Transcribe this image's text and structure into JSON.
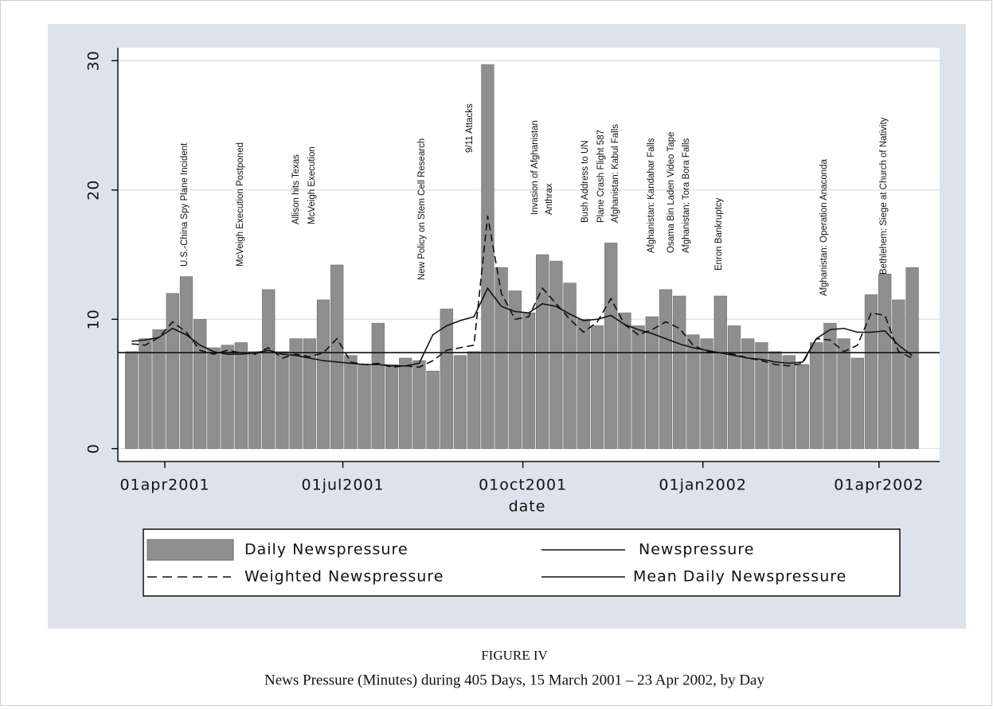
{
  "chart_data": {
    "type": "bar",
    "x_label": "date",
    "figure_label": "FIGURE IV",
    "caption": "News Pressure (Minutes) during 405 Days, 15 March 2001 – 23 Apr 2002, by Day",
    "x": [
      "2001-03-15",
      "2001-03-22",
      "2001-03-29",
      "2001-04-05",
      "2001-04-12",
      "2001-04-19",
      "2001-04-26",
      "2001-05-03",
      "2001-05-10",
      "2001-05-17",
      "2001-05-24",
      "2001-05-31",
      "2001-06-07",
      "2001-06-14",
      "2001-06-21",
      "2001-06-28",
      "2001-07-05",
      "2001-07-12",
      "2001-07-19",
      "2001-07-26",
      "2001-08-02",
      "2001-08-09",
      "2001-08-16",
      "2001-08-23",
      "2001-08-30",
      "2001-09-06",
      "2001-09-13",
      "2001-09-20",
      "2001-09-27",
      "2001-10-04",
      "2001-10-11",
      "2001-10-18",
      "2001-10-25",
      "2001-11-01",
      "2001-11-08",
      "2001-11-15",
      "2001-11-22",
      "2001-11-29",
      "2001-12-06",
      "2001-12-13",
      "2001-12-20",
      "2001-12-27",
      "2002-01-03",
      "2002-01-10",
      "2002-01-17",
      "2002-01-24",
      "2002-01-31",
      "2002-02-07",
      "2002-02-14",
      "2002-02-21",
      "2002-02-28",
      "2002-03-07",
      "2002-03-14",
      "2002-03-21",
      "2002-03-28",
      "2002-04-04",
      "2002-04-11",
      "2002-04-18"
    ],
    "series": [
      {
        "name": "Daily Newspressure",
        "kind": "bar",
        "color": "#8e8e8e",
        "values": [
          7.5,
          8.5,
          9.2,
          12,
          13.3,
          10,
          7.8,
          8,
          8.2,
          7.5,
          12.3,
          7.5,
          8.5,
          8.5,
          11.5,
          14.2,
          7.2,
          6.5,
          9.7,
          6.5,
          7,
          6.8,
          6,
          10.8,
          7.2,
          7.5,
          29.7,
          14,
          12.2,
          10.5,
          15,
          14.5,
          12.8,
          10,
          9.5,
          15.9,
          10.5,
          9.5,
          10.2,
          12.3,
          11.8,
          8.8,
          8.5,
          11.8,
          9.5,
          8.5,
          8.2,
          7.5,
          7.2,
          6.5,
          8.2,
          9.7,
          8.5,
          7,
          11.9,
          13.5,
          11.5,
          14
        ]
      },
      {
        "name": "Newspressure",
        "kind": "line",
        "dash": false,
        "color": "#111111",
        "values": [
          8.3,
          8.4,
          8.6,
          9.3,
          8.8,
          8.0,
          7.5,
          7.3,
          7.3,
          7.4,
          7.6,
          7.3,
          7.2,
          7.0,
          6.8,
          6.7,
          6.6,
          6.5,
          6.5,
          6.4,
          6.4,
          6.6,
          8.8,
          9.5,
          9.9,
          10.2,
          12.4,
          11.0,
          10.6,
          10.5,
          11.2,
          11.0,
          10.4,
          9.9,
          10.0,
          10.3,
          9.6,
          9.2,
          8.9,
          8.5,
          8.1,
          7.8,
          7.6,
          7.4,
          7.2,
          7.0,
          6.9,
          6.7,
          6.6,
          6.7,
          8.5,
          9.2,
          9.3,
          9.0,
          9.0,
          9.1,
          8.0,
          7.2
        ]
      },
      {
        "name": "Weighted Newspressure",
        "kind": "line",
        "dash": true,
        "color": "#111111",
        "values": [
          8.1,
          8.0,
          8.6,
          9.8,
          9.0,
          7.6,
          7.3,
          7.6,
          7.4,
          7.3,
          7.8,
          7.0,
          7.3,
          7.1,
          7.4,
          8.5,
          6.7,
          6.5,
          6.6,
          6.3,
          6.4,
          6.3,
          6.8,
          7.6,
          7.8,
          8.0,
          18,
          12.0,
          10.0,
          10.2,
          12.4,
          11.2,
          10.0,
          9.0,
          9.8,
          11.6,
          9.6,
          8.8,
          9.2,
          9.8,
          9.3,
          8.0,
          7.5,
          7.4,
          7.3,
          7.0,
          6.8,
          6.5,
          6.4,
          6.6,
          8.5,
          8.4,
          7.5,
          8.0,
          10.5,
          10.3,
          7.5,
          7.0
        ]
      }
    ],
    "mean_line": {
      "name": "Mean Daily Newspressure",
      "value": 7.42,
      "color": "#111111"
    },
    "annotations": [
      "U.S.-China Spy Plane Incident",
      "McVeigh Execution Postponed",
      "Allison hits Texas",
      "McVeigh Execution",
      "New Policy on Stem Cell Research",
      "9/11 Attacks",
      "Invasion of Afghanistan",
      "Anthrax",
      "Bush Address to UN",
      "Plane Crash Flight 587",
      "Afghanistan: Kabul Falls",
      "Afghanistan: Kandahar Falls",
      "Osama Bin Laden Video Tape",
      "Afghanistan: Tora Bora Falls",
      "Enron Bankruptcy",
      "Afghanistan: Operation Anaconda",
      "Bethlehem: Siege at Church of Nativity"
    ],
    "xlim": [
      "2001-03-08",
      "2002-05-02"
    ],
    "xticks": [
      {
        "value": "2001-04-01",
        "label": "01apr2001"
      },
      {
        "value": "2001-07-01",
        "label": "01jul2001"
      },
      {
        "value": "2001-10-01",
        "label": "01oct2001"
      },
      {
        "value": "2002-01-01",
        "label": "01jan2002"
      },
      {
        "value": "2002-04-01",
        "label": "01apr2002"
      }
    ],
    "ylim": [
      -1,
      31
    ],
    "yticks": [
      0,
      10,
      20,
      30
    ],
    "grid": true
  }
}
